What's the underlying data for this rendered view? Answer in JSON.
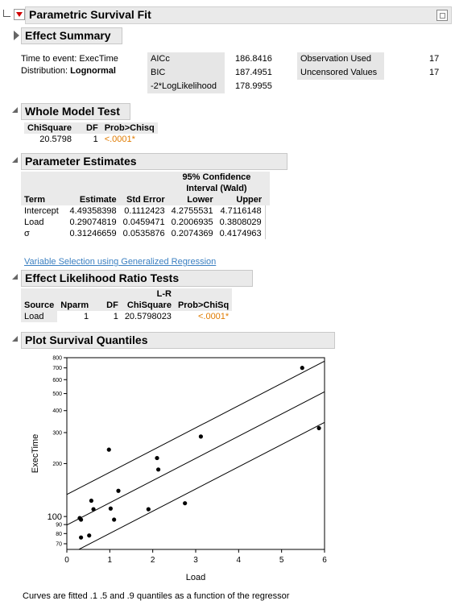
{
  "report": {
    "title": "Parametric Survival Fit"
  },
  "effect_summary": {
    "title": "Effect Summary",
    "time_label": "Time to event:",
    "time_value": "ExecTime",
    "dist_label": "Distribution:",
    "dist_value": "Lognormal",
    "fit_stats": [
      {
        "label": "AICc",
        "value": "186.8416"
      },
      {
        "label": "BIC",
        "value": "187.4951"
      },
      {
        "label": "-2*LogLikelihood",
        "value": "178.9955"
      }
    ],
    "counts": [
      {
        "label": "Observation Used",
        "value": "17"
      },
      {
        "label": "Uncensored Values",
        "value": "17"
      }
    ]
  },
  "whole_model": {
    "title": "Whole Model Test",
    "headers": [
      "ChiSquare",
      "DF",
      "Prob>Chisq"
    ],
    "row": [
      "20.5798",
      "1",
      "<.0001*"
    ]
  },
  "param_estimates": {
    "title": "Parameter Estimates",
    "ci_header_1": "95% Confidence",
    "ci_header_2": "Interval (Wald)",
    "headers": [
      "Term",
      "Estimate",
      "Std Error",
      "Lower",
      "Upper"
    ],
    "rows": [
      [
        "Intercept",
        "4.49358398",
        "0.1112423",
        "4.2755531",
        "4.7116148"
      ],
      [
        "Load",
        "0.29074819",
        "0.0459471",
        "0.2006935",
        "0.3808029"
      ],
      [
        "σ",
        "0.31246659",
        "0.0535876",
        "0.2074369",
        "0.4174963"
      ]
    ],
    "link": "Variable Selection using Generalized Regression"
  },
  "effect_lr": {
    "title": "Effect Likelihood Ratio Tests",
    "lr_header": "L-R",
    "headers": [
      "Source",
      "Nparm",
      "DF",
      "ChiSquare",
      "Prob>ChiSq"
    ],
    "row": [
      "Load",
      "1",
      "1",
      "20.5798023",
      "<.0001*"
    ]
  },
  "plot": {
    "title": "Plot Survival Quantiles",
    "caption": "Curves are fitted .1 .5 and .9 quantiles as a function of the regressor"
  },
  "chart_data": {
    "type": "scatter",
    "xlabel": "Load",
    "ylabel": "ExecTime",
    "xlim": [
      0,
      6
    ],
    "ylim": [
      65,
      800
    ],
    "y_scale": "log",
    "x_ticks": [
      "0",
      "1",
      "2",
      "3",
      "4",
      "5",
      "6"
    ],
    "y_ticks": [
      {
        "v": 70,
        "label": "70"
      },
      {
        "v": 80,
        "label": "80"
      },
      {
        "v": 90,
        "label": "90"
      },
      {
        "v": 100,
        "label": "100"
      },
      {
        "v": 200,
        "label": "200"
      },
      {
        "v": 300,
        "label": "300"
      },
      {
        "v": 400,
        "label": "400"
      },
      {
        "v": 500,
        "label": "500"
      },
      {
        "v": 600,
        "label": "600"
      },
      {
        "v": 700,
        "label": "700"
      },
      {
        "v": 800,
        "label": "800"
      }
    ],
    "points": [
      {
        "x": 0.3,
        "y": 98
      },
      {
        "x": 0.33,
        "y": 96
      },
      {
        "x": 0.33,
        "y": 76
      },
      {
        "x": 0.52,
        "y": 78
      },
      {
        "x": 0.57,
        "y": 123
      },
      {
        "x": 0.62,
        "y": 110
      },
      {
        "x": 0.98,
        "y": 240
      },
      {
        "x": 1.02,
        "y": 111
      },
      {
        "x": 1.1,
        "y": 96
      },
      {
        "x": 1.2,
        "y": 140
      },
      {
        "x": 1.9,
        "y": 110
      },
      {
        "x": 2.1,
        "y": 215
      },
      {
        "x": 2.13,
        "y": 185
      },
      {
        "x": 2.75,
        "y": 119
      },
      {
        "x": 3.12,
        "y": 285
      },
      {
        "x": 5.48,
        "y": 700
      },
      {
        "x": 5.87,
        "y": 318
      }
    ],
    "series": [
      {
        "name": ".1",
        "intercept": 4.0932,
        "slope": 0.29075
      },
      {
        "name": ".5",
        "intercept": 4.49358,
        "slope": 0.29075
      },
      {
        "name": ".9",
        "intercept": 4.894,
        "slope": 0.29075
      }
    ],
    "grid": false
  }
}
